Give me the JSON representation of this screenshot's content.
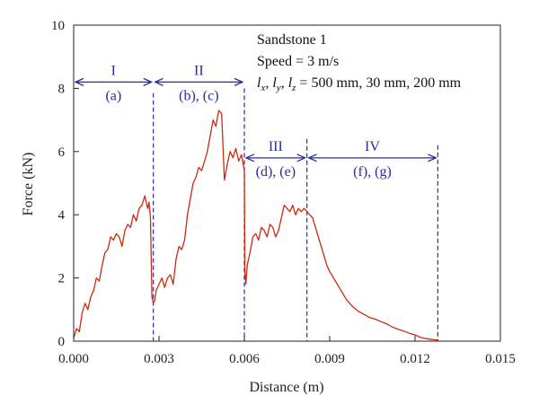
{
  "chart_data": {
    "type": "line",
    "xlabel": "Distance (m)",
    "ylabel": "Force (kN)",
    "xlim": [
      0,
      0.015
    ],
    "ylim": [
      0,
      10
    ],
    "xticks": [
      "0.000",
      "0.003",
      "0.006",
      "0.009",
      "0.012",
      "0.015"
    ],
    "yticks": [
      "0",
      "2",
      "4",
      "6",
      "8",
      "10"
    ],
    "annotation": {
      "title": "Sandstone 1",
      "speed": "Speed = 3 m/s",
      "dims_value": " = 500 mm, 30 mm, 200 mm"
    },
    "boundaries": [
      0.0028,
      0.006,
      0.0082,
      0.0128
    ],
    "regions": [
      {
        "roman": "I",
        "label": "(a)",
        "x0": 0.0,
        "x1": 0.0028,
        "arrow_y": 8.2
      },
      {
        "roman": "II",
        "label": "(b), (c)",
        "x0": 0.0028,
        "x1": 0.006,
        "arrow_y": 8.2
      },
      {
        "roman": "III",
        "label": "(d), (e)",
        "x0": 0.006,
        "x1": 0.0082,
        "arrow_y": 5.8
      },
      {
        "roman": "IV",
        "label": "(f), (g)",
        "x0": 0.0082,
        "x1": 0.0128,
        "arrow_y": 5.8
      }
    ],
    "series": [
      {
        "color": "#cc2a10",
        "x": [
          0.0,
          0.0001,
          0.0002,
          0.0003,
          0.0004,
          0.0005,
          0.0006,
          0.0007,
          0.0008,
          0.0009,
          0.001,
          0.0011,
          0.0012,
          0.0013,
          0.0014,
          0.0015,
          0.0016,
          0.0017,
          0.0018,
          0.0019,
          0.002,
          0.0021,
          0.0022,
          0.0023,
          0.0024,
          0.0025,
          0.0026,
          0.00265,
          0.0027,
          0.00275,
          0.0028,
          0.00285,
          0.0029,
          0.003,
          0.0031,
          0.0032,
          0.0033,
          0.0034,
          0.0035,
          0.0036,
          0.0037,
          0.0038,
          0.0039,
          0.004,
          0.0041,
          0.0042,
          0.0043,
          0.0044,
          0.0045,
          0.0046,
          0.0047,
          0.0048,
          0.0049,
          0.005,
          0.0051,
          0.0052,
          0.0053,
          0.0054,
          0.0055,
          0.0056,
          0.0057,
          0.0058,
          0.0059,
          0.006,
          0.00602,
          0.00605,
          0.0061,
          0.0062,
          0.0063,
          0.0064,
          0.0065,
          0.0066,
          0.0067,
          0.0068,
          0.0069,
          0.007,
          0.0071,
          0.0072,
          0.0073,
          0.0074,
          0.0075,
          0.0076,
          0.0077,
          0.0078,
          0.0079,
          0.008,
          0.0081,
          0.0082,
          0.0083,
          0.0084,
          0.0085,
          0.0086,
          0.0087,
          0.0088,
          0.0089,
          0.009,
          0.0092,
          0.0094,
          0.0096,
          0.0098,
          0.01,
          0.0102,
          0.0104,
          0.0106,
          0.0108,
          0.011,
          0.0112,
          0.0114,
          0.0116,
          0.0118,
          0.012,
          0.0122,
          0.0124,
          0.0126,
          0.0128
        ],
        "y": [
          0.1,
          0.4,
          0.3,
          0.9,
          1.2,
          1.0,
          1.4,
          1.6,
          2.0,
          1.9,
          2.4,
          2.8,
          2.9,
          3.3,
          3.2,
          3.4,
          3.3,
          3.0,
          3.5,
          3.7,
          3.6,
          4.0,
          3.8,
          4.2,
          4.3,
          4.6,
          4.2,
          4.4,
          3.9,
          1.4,
          1.2,
          1.3,
          1.6,
          1.8,
          2.0,
          1.7,
          2.0,
          2.1,
          1.8,
          2.6,
          3.0,
          2.9,
          3.2,
          4.0,
          4.5,
          5.0,
          5.2,
          5.5,
          5.4,
          5.7,
          6.0,
          6.5,
          7.0,
          6.8,
          7.3,
          7.2,
          5.1,
          5.6,
          6.0,
          5.8,
          6.1,
          5.7,
          5.9,
          5.4,
          2.2,
          1.8,
          2.4,
          2.8,
          3.3,
          3.4,
          3.2,
          3.6,
          3.5,
          3.3,
          3.7,
          3.6,
          3.3,
          3.5,
          3.9,
          4.3,
          4.2,
          4.1,
          4.3,
          4.0,
          4.2,
          4.1,
          4.2,
          4.1,
          4.0,
          3.9,
          3.6,
          3.3,
          3.0,
          2.7,
          2.4,
          2.2,
          1.9,
          1.6,
          1.3,
          1.1,
          0.95,
          0.85,
          0.75,
          0.7,
          0.62,
          0.55,
          0.45,
          0.38,
          0.32,
          0.25,
          0.2,
          0.12,
          0.08,
          0.05,
          0.03
        ]
      }
    ]
  }
}
